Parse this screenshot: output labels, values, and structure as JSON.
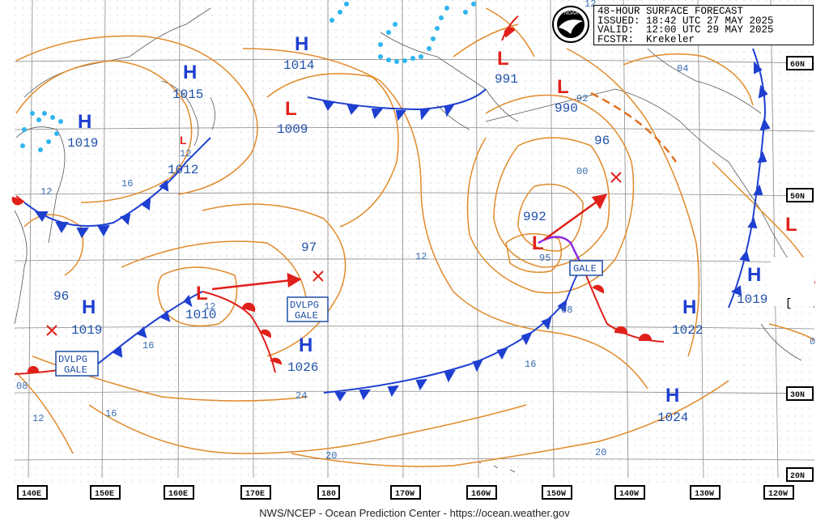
{
  "header": {
    "line1": "48-HOUR SURFACE FORECAST",
    "line2": "ISSUED: 18:42 UTC 27 MAY 2025",
    "line3": "VALID:  12:00 UTC 29 MAY 2025",
    "line4": "FCSTR:  Krekeler"
  },
  "footer": "NWS/NCEP - Ocean Prediction Center - https://ocean.weather.gov",
  "lon_labels": [
    "140E",
    "150E",
    "160E",
    "170E",
    "180",
    "170W",
    "160W",
    "150W",
    "140W",
    "130W",
    "120W"
  ],
  "lat_labels": [
    "60N",
    "50N",
    "30N",
    "20N"
  ],
  "highs": [
    {
      "mark": "H",
      "value": "1014"
    },
    {
      "mark": "H",
      "value": "1015"
    },
    {
      "mark": "H",
      "value": "1019"
    },
    {
      "mark": "H",
      "value": "1019"
    },
    {
      "mark": "H",
      "value": "1026"
    },
    {
      "mark": "H",
      "value": "1022"
    },
    {
      "mark": "H",
      "value": "1019"
    },
    {
      "mark": "H",
      "value": "1024"
    }
  ],
  "lows": [
    {
      "mark": "L",
      "value": "1009"
    },
    {
      "mark": "L",
      "value": "1010"
    },
    {
      "mark": "L",
      "value": "991"
    },
    {
      "mark": "L",
      "value": "990"
    },
    {
      "mark": "L",
      "value": "992"
    },
    {
      "mark": "L",
      "value": "12"
    }
  ],
  "isobar_labels": [
    "16",
    "12",
    "12",
    "16",
    "12",
    "96",
    "97",
    "96",
    "08",
    "16",
    "16",
    "20",
    "24",
    "20",
    "12",
    "00",
    "92",
    "04",
    "08",
    "12",
    "08",
    "16",
    "95"
  ],
  "warnings": {
    "gale1": "GALE",
    "dvlpg1_a": "DVLPG",
    "dvlpg1_b": "GALE",
    "dvlpg2_a": "DVLPG",
    "dvlpg2_b": "GALE"
  },
  "colors": {
    "isobar": "#e08a2a",
    "cold_front": "#1e3fd0",
    "warm_front": "#e0201a",
    "occluded": "#8a2be2",
    "ice": "#2fb5ee",
    "land": "#555555",
    "grid": "#888888"
  }
}
